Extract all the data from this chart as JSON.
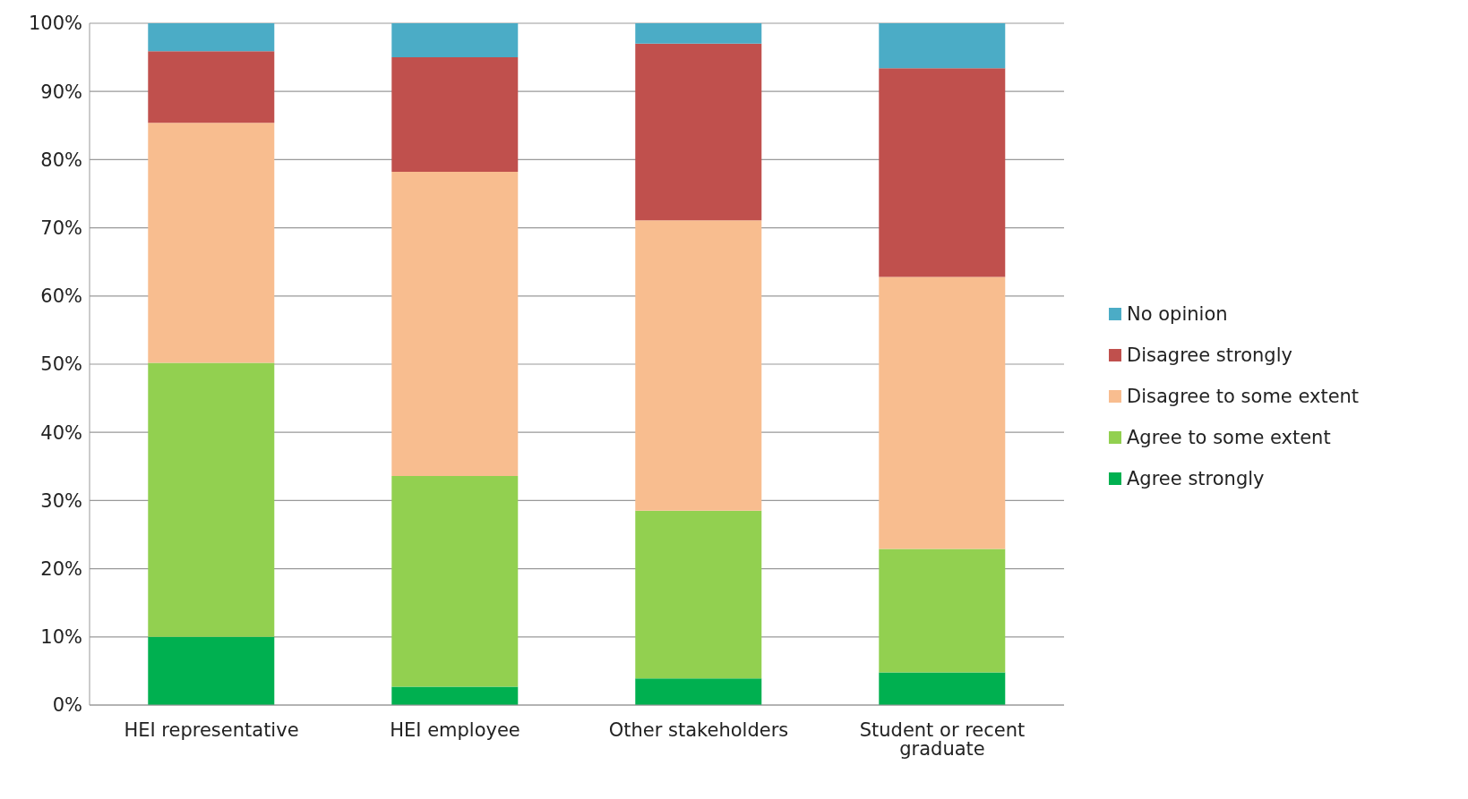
{
  "chart_data": {
    "type": "bar",
    "stacked": true,
    "categories": [
      "HEI representative",
      "HEI employee",
      "Other stakeholders",
      "Student or recent graduate"
    ],
    "series": [
      {
        "name": "Agree strongly",
        "color": "#00b050",
        "values": [
          10.0,
          2.7,
          3.9,
          4.8
        ]
      },
      {
        "name": "Agree to some extent",
        "color": "#92d050",
        "values": [
          40.2,
          30.9,
          24.6,
          18.1
        ]
      },
      {
        "name": "Disagree to some extent",
        "color": "#f8bd8f",
        "values": [
          35.2,
          44.6,
          42.6,
          39.9
        ]
      },
      {
        "name": "Disagree strongly",
        "color": "#c0504d",
        "values": [
          10.5,
          16.8,
          25.9,
          30.6
        ]
      },
      {
        "name": "No opinion",
        "color": "#4bacc6",
        "values": [
          4.1,
          5.0,
          3.0,
          6.6
        ]
      }
    ],
    "ylim": [
      0,
      100
    ],
    "yticks": [
      {
        "value": 0,
        "label": "0%"
      },
      {
        "value": 10,
        "label": "10%"
      },
      {
        "value": 20,
        "label": "20%"
      },
      {
        "value": 30,
        "label": "30%"
      },
      {
        "value": 40,
        "label": "40%"
      },
      {
        "value": 50,
        "label": "50%"
      },
      {
        "value": 60,
        "label": "60%"
      },
      {
        "value": 70,
        "label": "70%"
      },
      {
        "value": 80,
        "label": "80%"
      },
      {
        "value": 90,
        "label": "90%"
      },
      {
        "value": 100,
        "label": "100%"
      }
    ],
    "grid": "y",
    "legend": "right"
  }
}
